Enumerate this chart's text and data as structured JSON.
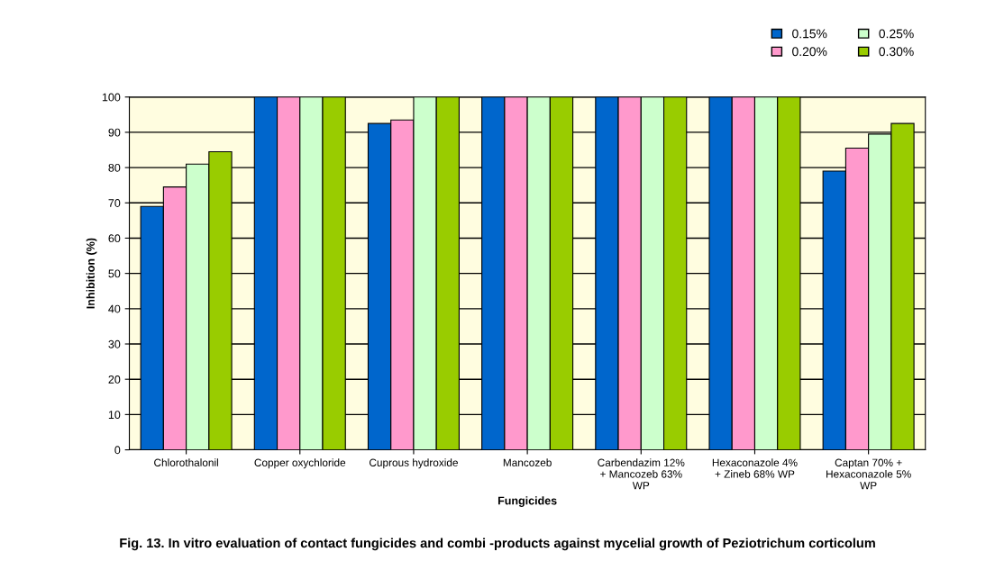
{
  "chart_data": {
    "type": "bar",
    "categories": [
      "Chlorothalonil",
      "Copper oxychloride",
      "Cuprous hydroxide",
      "Mancozeb",
      "Carbendazim 12%\n+ Mancozeb 63%\nWP",
      "Hexaconazole 4%\n+ Zineb 68% WP",
      "Captan 70% +\nHexaconazole 5%\nWP"
    ],
    "series": [
      {
        "name": "0.15%",
        "color": "#0066cc",
        "values": [
          69,
          100,
          92.5,
          100,
          100,
          100,
          79
        ]
      },
      {
        "name": "0.20%",
        "color": "#ff99cc",
        "values": [
          74.5,
          100,
          93.5,
          100,
          100,
          100,
          85.5
        ]
      },
      {
        "name": "0.25%",
        "color": "#ccffcc",
        "values": [
          81,
          100,
          100,
          100,
          100,
          100,
          89.5
        ]
      },
      {
        "name": "0.30%",
        "color": "#99cc00",
        "values": [
          84.5,
          100,
          100,
          100,
          100,
          100,
          92.5
        ]
      }
    ],
    "xlabel": "Fungicides",
    "ylabel": "Inhibition (%)",
    "ylim": [
      0,
      100
    ],
    "yticks": [
      0,
      10,
      20,
      30,
      40,
      50,
      60,
      70,
      80,
      90,
      100
    ],
    "grid": "y",
    "legend": "top right",
    "annotations": [
      "Fig. 13. In vitro evaluation of contact fungicides and combi -products against mycelial growth of Peziotrichum corticolum"
    ]
  }
}
